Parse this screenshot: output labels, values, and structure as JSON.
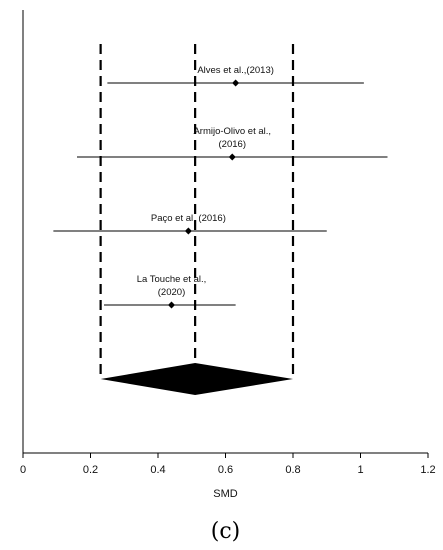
{
  "chart_data": {
    "type": "forest",
    "xlabel": "SMD",
    "xlim": [
      0,
      1.2
    ],
    "xticks": [
      "0",
      "0.2",
      "0.4",
      "0.6",
      "0.8",
      "1",
      "1.2"
    ],
    "xtick_values": [
      0,
      0.2,
      0.4,
      0.6,
      0.8,
      1.0,
      1.2
    ],
    "studies": [
      {
        "label_lines": [
          "Alves et al.,(2013)"
        ],
        "smd": 0.63,
        "ci": [
          0.25,
          1.01
        ]
      },
      {
        "label_lines": [
          "Armijo-Olivo et al.,",
          "(2016)"
        ],
        "smd": 0.62,
        "ci": [
          0.16,
          1.08
        ]
      },
      {
        "label_lines": [
          "Paço et al. (2016)"
        ],
        "smd": 0.49,
        "ci": [
          0.09,
          0.9
        ]
      },
      {
        "label_lines": [
          "La Touche et al.,",
          "(2020)"
        ],
        "smd": 0.44,
        "ci": [
          0.24,
          0.63
        ]
      }
    ],
    "pooled": {
      "smd": 0.51,
      "ci": [
        0.23,
        0.8
      ]
    },
    "dashed_reference_lines": [
      0.23,
      0.51,
      0.8
    ]
  },
  "panel_label": "(c)"
}
